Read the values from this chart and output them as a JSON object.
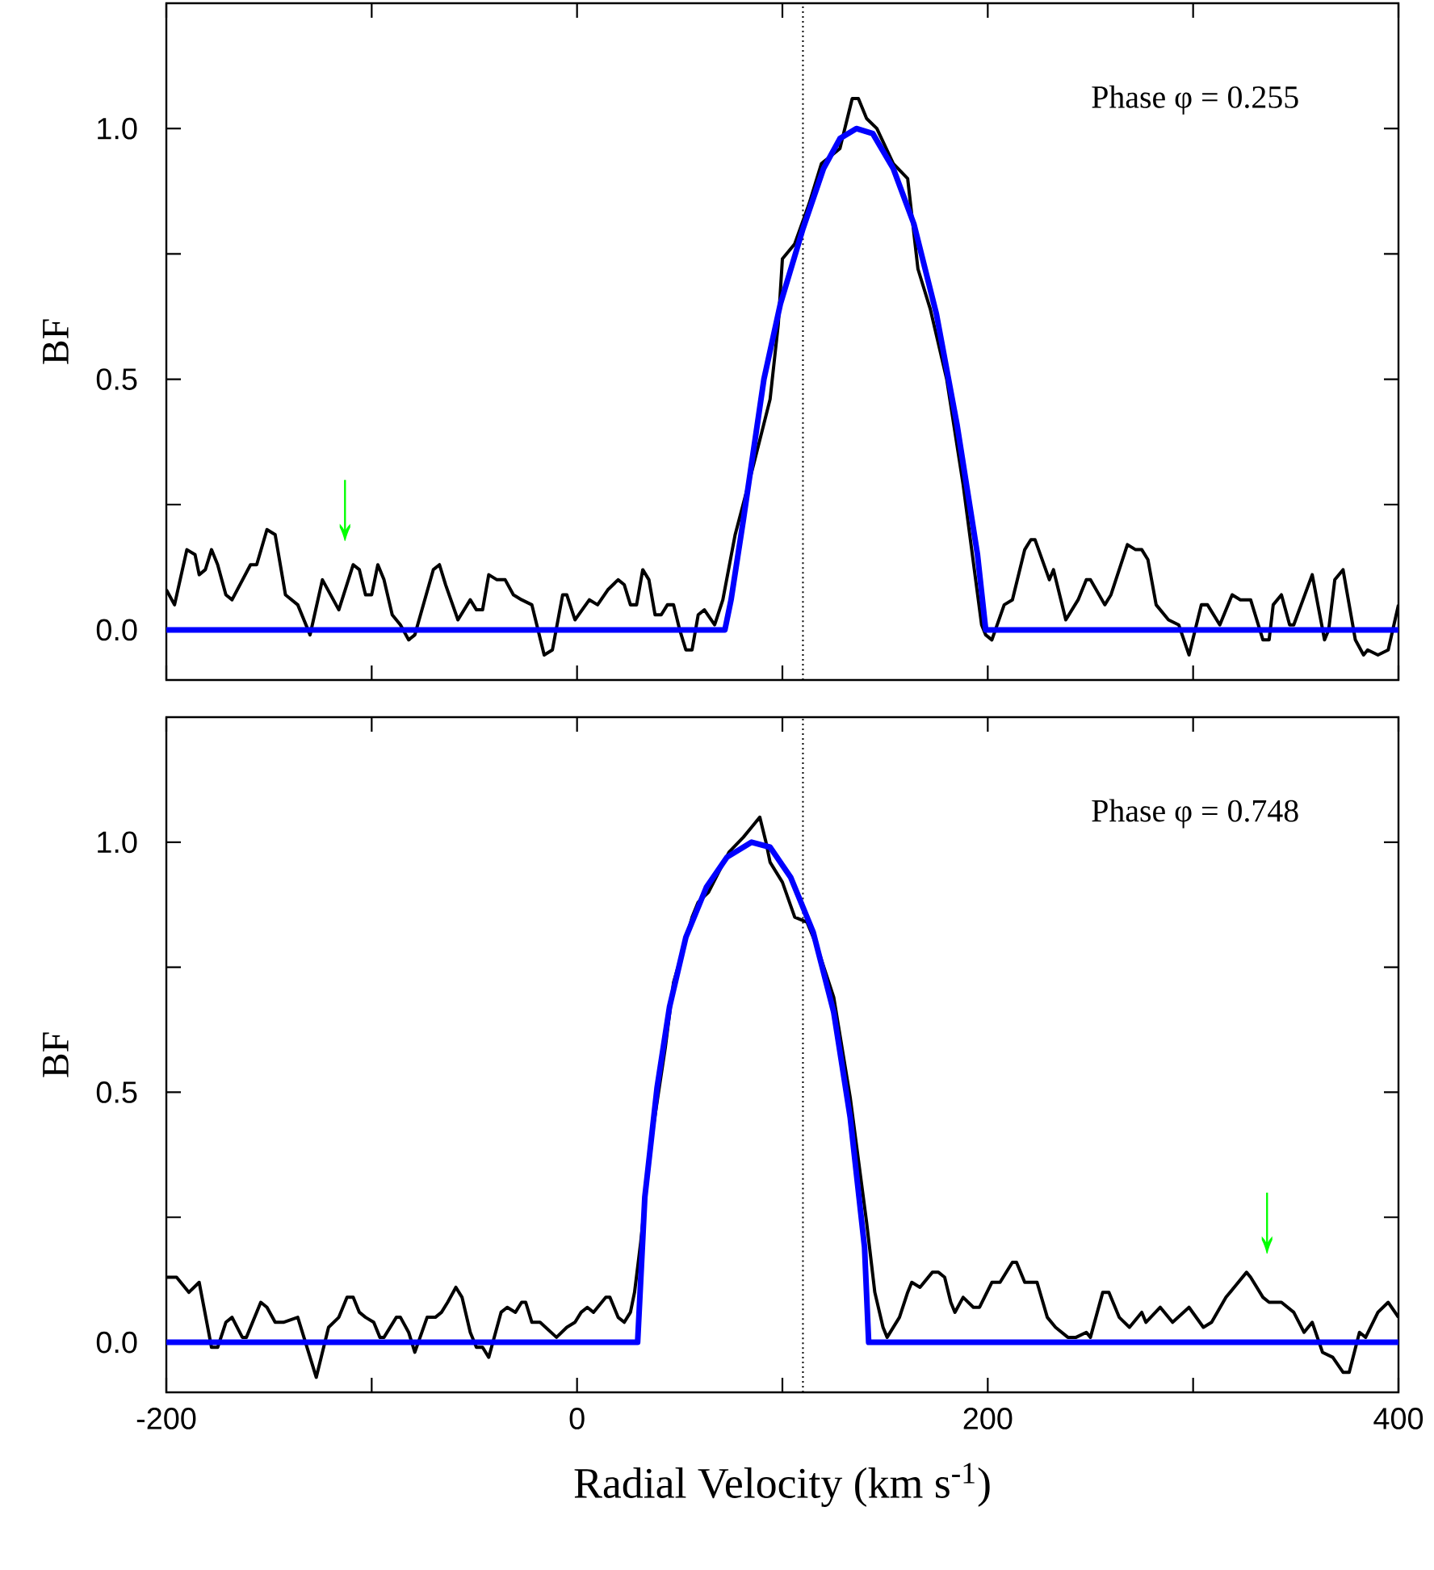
{
  "chart_data": [
    {
      "type": "line",
      "ylabel": "BF",
      "xlim": [
        -200,
        400
      ],
      "ylim": [
        -0.1,
        1.25
      ],
      "tick_labels": "y",
      "xticks": [
        {
          "value": -200,
          "label": null
        },
        {
          "value": -100,
          "label": null
        },
        {
          "value": 0,
          "label": null
        },
        {
          "value": 100,
          "label": null
        },
        {
          "value": 200,
          "label": null
        },
        {
          "value": 300,
          "label": null
        },
        {
          "value": 400,
          "label": null
        }
      ],
      "yticks": [
        {
          "value": 0,
          "label": "0.0"
        },
        {
          "value": 0.25,
          "label": null
        },
        {
          "value": 0.5,
          "label": "0.5"
        },
        {
          "value": 0.75,
          "label": null
        },
        {
          "value": 1,
          "label": "1.0"
        }
      ],
      "ref_lines": [
        {
          "axis": "x",
          "value": 110,
          "color": "#000000",
          "line_style": "dotted"
        }
      ],
      "annotations": [
        "Phase φ = 0.255",
        {
          "text": "↓",
          "x": -113,
          "y": 0.08
        }
      ],
      "series": [
        {
          "color": "#000000",
          "x": [
            -200,
            -196,
            -190,
            -186,
            -184,
            -181,
            -178,
            -175,
            -171,
            -168,
            -159,
            -156,
            -151,
            -147,
            -142,
            -136,
            -130,
            -124,
            -116,
            -109,
            -106,
            -103,
            -100,
            -97,
            -94,
            -90,
            -86,
            -82,
            -79,
            -70,
            -67,
            -64,
            -58,
            -52,
            -49,
            -46,
            -43,
            -39,
            -35,
            -31,
            -27,
            -22,
            -16,
            -12,
            -7,
            -5,
            -1,
            6,
            10,
            15,
            20,
            23,
            26,
            29,
            32,
            35,
            38,
            41,
            44,
            47,
            50,
            53,
            56,
            59,
            62,
            67,
            71,
            77,
            86,
            94,
            98,
            100,
            106,
            113,
            119,
            128,
            134,
            137,
            141,
            146,
            154,
            161,
            166,
            172,
            180,
            188,
            197,
            199,
            202,
            208,
            212,
            218,
            221,
            223,
            230,
            232,
            238,
            244,
            248,
            250,
            257,
            260,
            268,
            272,
            275,
            278,
            282,
            288,
            293,
            298,
            304,
            307,
            313,
            319,
            323,
            328,
            334,
            337,
            339,
            343,
            347,
            349,
            358,
            364,
            366,
            369,
            373,
            379,
            383,
            385,
            390,
            395,
            400
          ],
          "values": [
            0.08,
            0.05,
            0.16,
            0.15,
            0.11,
            0.12,
            0.16,
            0.13,
            0.07,
            0.06,
            0.13,
            0.13,
            0.2,
            0.19,
            0.07,
            0.05,
            -0.01,
            0.1,
            0.04,
            0.13,
            0.12,
            0.07,
            0.07,
            0.13,
            0.1,
            0.03,
            0.01,
            -0.02,
            -0.01,
            0.12,
            0.13,
            0.09,
            0.02,
            0.06,
            0.04,
            0.04,
            0.11,
            0.1,
            0.1,
            0.07,
            0.06,
            0.05,
            -0.05,
            -0.04,
            0.07,
            0.07,
            0.02,
            0.06,
            0.05,
            0.08,
            0.1,
            0.09,
            0.05,
            0.05,
            0.12,
            0.1,
            0.03,
            0.03,
            0.05,
            0.05,
            0.0,
            -0.04,
            -0.04,
            0.03,
            0.04,
            0.01,
            0.06,
            0.19,
            0.33,
            0.46,
            0.61,
            0.74,
            0.77,
            0.85,
            0.93,
            0.96,
            1.06,
            1.06,
            1.02,
            1.0,
            0.93,
            0.9,
            0.72,
            0.64,
            0.5,
            0.29,
            0.01,
            -0.01,
            -0.02,
            0.05,
            0.06,
            0.16,
            0.18,
            0.18,
            0.1,
            0.12,
            0.02,
            0.06,
            0.1,
            0.1,
            0.05,
            0.07,
            0.17,
            0.16,
            0.16,
            0.14,
            0.05,
            0.02,
            0.01,
            -0.05,
            0.05,
            0.05,
            0.01,
            0.07,
            0.06,
            0.06,
            -0.02,
            -0.02,
            0.05,
            0.07,
            0.01,
            0.01,
            0.11,
            -0.02,
            0.0,
            0.1,
            0.12,
            -0.02,
            -0.05,
            -0.04,
            -0.05,
            -0.04,
            0.05
          ]
        },
        {
          "color": "#0000ff",
          "x": [
            -200,
            72,
            75,
            81,
            91,
            99,
            110,
            120,
            128,
            136,
            144,
            154,
            164,
            175,
            185,
            195,
            199,
            400
          ],
          "values": [
            0,
            0,
            0.06,
            0.22,
            0.5,
            0.65,
            0.8,
            0.92,
            0.98,
            1.0,
            0.99,
            0.92,
            0.81,
            0.63,
            0.41,
            0.15,
            0,
            0
          ]
        }
      ]
    },
    {
      "type": "line",
      "xlabel": "Radial Velocity (km s$^{-1}$)",
      "ylabel": "BF",
      "xlim": [
        -200,
        400
      ],
      "ylim": [
        -0.1,
        1.25
      ],
      "xticks": [
        -200,
        {
          "value": -100,
          "label": null
        },
        0,
        {
          "value": 100,
          "label": null
        },
        200,
        {
          "value": 300,
          "label": null
        },
        400
      ],
      "yticks": [
        {
          "value": 0,
          "label": "0.0"
        },
        {
          "value": 0.25,
          "label": null
        },
        {
          "value": 0.5,
          "label": "0.5"
        },
        {
          "value": 0.75,
          "label": null
        },
        {
          "value": 1,
          "label": "1.0"
        }
      ],
      "ref_lines": [
        {
          "axis": "x",
          "value": 110,
          "color": "#000000",
          "line_style": "dotted"
        }
      ],
      "annotations": [
        "Phase φ = 0.748",
        {
          "text": "↓",
          "x": 336,
          "y": 0.08
        }
      ],
      "series": [
        {
          "color": "#000000",
          "x": [
            -200,
            -195,
            -189,
            -184,
            -178,
            -175,
            -171,
            -168,
            -163,
            -161,
            -154,
            -151,
            -147,
            -143,
            -136,
            -133,
            -127,
            -121,
            -116,
            -112,
            -109,
            -106,
            -103,
            -99,
            -96,
            -94,
            -88,
            -86,
            -82,
            -79,
            -73,
            -69,
            -66,
            -63,
            -59,
            -56,
            -52,
            -49,
            -46,
            -43,
            -37,
            -34,
            -30,
            -27,
            -25,
            -22,
            -18,
            -10,
            -5,
            -1,
            2,
            5,
            8,
            14,
            16,
            20,
            23,
            26,
            28,
            31,
            36,
            43,
            47,
            52,
            56,
            59,
            64,
            69,
            74,
            81,
            85,
            89,
            92,
            94,
            100,
            106,
            112,
            117,
            125,
            133,
            141,
            145,
            149,
            151,
            157,
            161,
            163,
            167,
            173,
            176,
            179,
            182,
            184,
            188,
            193,
            196,
            202,
            206,
            212,
            214,
            218,
            224,
            229,
            233,
            239,
            243,
            248,
            250,
            256,
            259,
            264,
            269,
            275,
            277,
            284,
            290,
            298,
            305,
            309,
            316,
            320,
            326,
            328,
            334,
            337,
            340,
            343,
            349,
            354,
            358,
            363,
            368,
            373,
            376,
            381,
            384,
            390,
            395,
            400
          ],
          "values": [
            0.13,
            0.13,
            0.1,
            0.12,
            -0.01,
            -0.01,
            0.04,
            0.05,
            0.01,
            0.01,
            0.08,
            0.07,
            0.04,
            0.04,
            0.05,
            0.01,
            -0.07,
            0.03,
            0.05,
            0.09,
            0.09,
            0.06,
            0.05,
            0.04,
            0.01,
            0.01,
            0.05,
            0.05,
            0.02,
            -0.02,
            0.05,
            0.05,
            0.06,
            0.08,
            0.11,
            0.09,
            0.02,
            -0.01,
            -0.01,
            -0.03,
            0.06,
            0.07,
            0.06,
            0.08,
            0.08,
            0.04,
            0.04,
            0.01,
            0.03,
            0.04,
            0.06,
            0.07,
            0.06,
            0.09,
            0.09,
            0.05,
            0.04,
            0.06,
            0.1,
            0.2,
            0.4,
            0.59,
            0.72,
            0.79,
            0.85,
            0.88,
            0.9,
            0.94,
            0.98,
            1.01,
            1.03,
            1.05,
            1.0,
            0.96,
            0.92,
            0.85,
            0.84,
            0.79,
            0.69,
            0.49,
            0.24,
            0.1,
            0.03,
            0.01,
            0.05,
            0.1,
            0.12,
            0.11,
            0.14,
            0.14,
            0.13,
            0.08,
            0.06,
            0.09,
            0.07,
            0.07,
            0.12,
            0.12,
            0.16,
            0.16,
            0.12,
            0.12,
            0.05,
            0.03,
            0.01,
            0.01,
            0.02,
            0.01,
            0.1,
            0.1,
            0.05,
            0.03,
            0.06,
            0.04,
            0.07,
            0.04,
            0.07,
            0.03,
            0.04,
            0.09,
            0.11,
            0.14,
            0.13,
            0.09,
            0.08,
            0.08,
            0.08,
            0.06,
            0.02,
            0.04,
            -0.02,
            -0.03,
            -0.06,
            -0.06,
            0.02,
            0.01,
            0.06,
            0.08,
            0.05
          ]
        },
        {
          "color": "#0000ff",
          "x": [
            -200,
            29.5,
            33,
            39,
            45,
            53,
            63,
            73,
            85,
            94,
            104,
            115,
            125,
            133,
            140,
            142,
            400
          ],
          "values": [
            0,
            0,
            0.29,
            0.51,
            0.67,
            0.81,
            0.91,
            0.97,
            1.0,
            0.99,
            0.93,
            0.82,
            0.66,
            0.45,
            0.19,
            0,
            0
          ]
        }
      ]
    }
  ]
}
